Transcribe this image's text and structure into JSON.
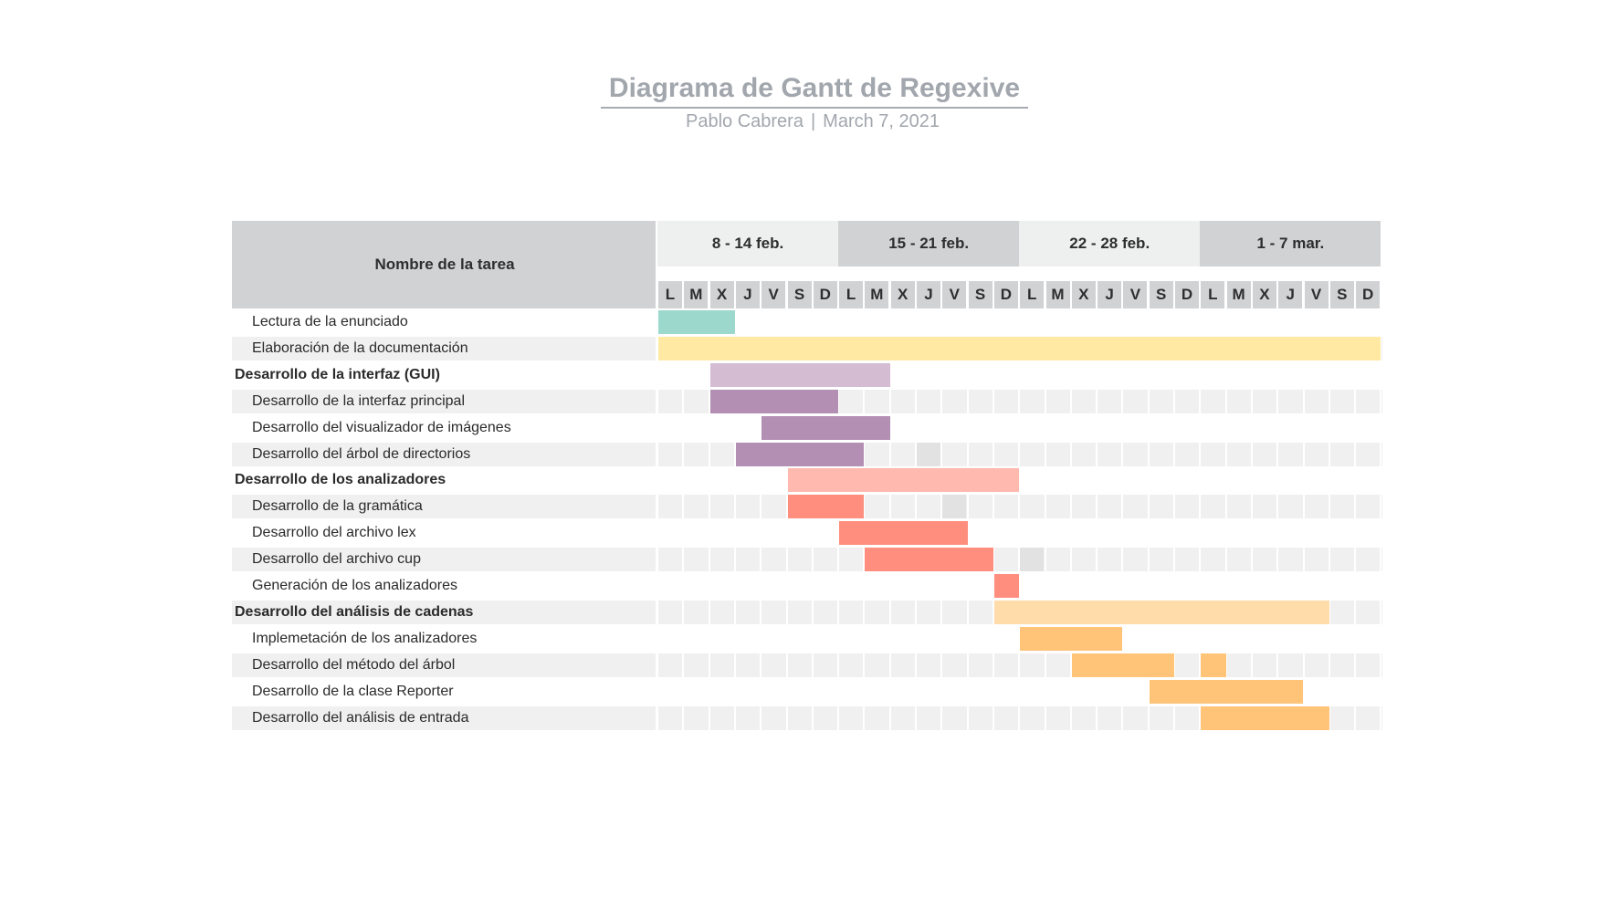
{
  "header": {
    "title": "Diagrama de Gantt de Regexive",
    "author": "Pablo Cabrera",
    "separator": "|",
    "date": "March 7, 2021"
  },
  "table": {
    "task_column_header": "Nombre de la tarea",
    "weeks": [
      "8 - 14 feb.",
      "15 - 21 feb.",
      "22 - 28 feb.",
      "1 - 7 mar."
    ],
    "days": [
      "L",
      "M",
      "X",
      "J",
      "V",
      "S",
      "D",
      "L",
      "M",
      "X",
      "J",
      "V",
      "S",
      "D",
      "L",
      "M",
      "X",
      "J",
      "V",
      "S",
      "D",
      "L",
      "M",
      "X",
      "J",
      "V",
      "S",
      "D"
    ]
  },
  "colors": {
    "header_gray": "#d1d2d4",
    "week_light": "#eeefef",
    "row_shade": "#f0f0f0",
    "teal": "#9cd8cc",
    "yellow": "#ffe9a3",
    "purple_light": "#d4bcd3",
    "purple": "#b38fb3",
    "salmon_light": "#ffb9ae",
    "salmon": "#ff8e7e",
    "orange_light": "#ffdcaa",
    "orange": "#ffc478"
  },
  "tasks": [
    {
      "name": "Lectura de la enunciado",
      "group": false,
      "color": "teal",
      "start_day": 1,
      "end_day": 3
    },
    {
      "name": "Elaboración de la documentación",
      "group": false,
      "color": "yellow",
      "start_day": 1,
      "end_day": 28
    },
    {
      "name": "Desarrollo de la interfaz (GUI)",
      "group": true,
      "color": "purple_light",
      "start_day": 3,
      "end_day": 9
    },
    {
      "name": "Desarrollo de la interfaz principal",
      "group": false,
      "color": "purple",
      "start_day": 3,
      "end_day": 7
    },
    {
      "name": "Desarrollo del visualizador de imágenes",
      "group": false,
      "color": "purple",
      "start_day": 5,
      "end_day": 9
    },
    {
      "name": "Desarrollo del árbol de directorios",
      "group": false,
      "color": "purple",
      "start_day": 4,
      "end_day": 8,
      "highlight_days": [
        11
      ]
    },
    {
      "name": "Desarrollo de los analizadores",
      "group": true,
      "color": "salmon_light",
      "start_day": 6,
      "end_day": 14
    },
    {
      "name": "Desarrollo de la gramática",
      "group": false,
      "color": "salmon",
      "start_day": 6,
      "end_day": 8,
      "highlight_days": [
        12
      ]
    },
    {
      "name": "Desarrollo del archivo lex",
      "group": false,
      "color": "salmon",
      "start_day": 8,
      "end_day": 12
    },
    {
      "name": "Desarrollo del archivo cup",
      "group": false,
      "color": "salmon",
      "start_day": 9,
      "end_day": 13,
      "highlight_days": [
        15
      ]
    },
    {
      "name": "Generación de los analizadores",
      "group": false,
      "color": "salmon",
      "start_day": 14,
      "end_day": 14
    },
    {
      "name": "Desarrollo del análisis de cadenas",
      "group": true,
      "color": "orange_light",
      "start_day": 14,
      "end_day": 26
    },
    {
      "name": "Implemetación de los analizadores",
      "group": false,
      "color": "orange",
      "start_day": 15,
      "end_day": 18
    },
    {
      "name": "Desarrollo del método del árbol",
      "group": false,
      "color": "orange",
      "start_day": 17,
      "end_day": 20,
      "extra_day": 22
    },
    {
      "name": "Desarrollo de la clase Reporter",
      "group": false,
      "color": "orange",
      "start_day": 20,
      "end_day": 25
    },
    {
      "name": "Desarrollo del análisis de entrada",
      "group": false,
      "color": "orange",
      "start_day": 22,
      "end_day": 26
    }
  ]
}
